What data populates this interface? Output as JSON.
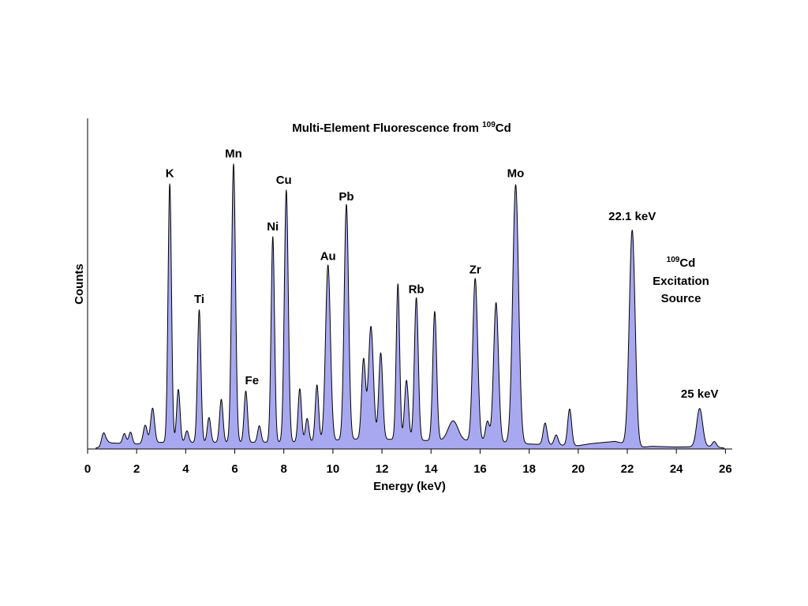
{
  "chart_data": {
    "type": "area",
    "title_main": "Multi-Element Fluorescence from ",
    "title_sup": "109",
    "title_end": "Cd",
    "xlabel": "Energy (keV)",
    "ylabel": "Counts",
    "xlim": [
      0,
      26.3
    ],
    "ylim": [
      0,
      100
    ],
    "grid": false,
    "fill_color": "#a8a8f0",
    "line_color": "#000000",
    "x_ticks": [
      "0",
      "2",
      "4",
      "6",
      "8",
      "10",
      "12",
      "14",
      "16",
      "18",
      "20",
      "22",
      "24",
      "26"
    ],
    "background": [
      {
        "x": 0.0,
        "y": 0
      },
      {
        "x": 0.5,
        "y": 0.5
      },
      {
        "x": 0.8,
        "y": 2.2
      },
      {
        "x": 1.0,
        "y": 1.8
      },
      {
        "x": 2.0,
        "y": 1.5
      },
      {
        "x": 3.0,
        "y": 2.0
      },
      {
        "x": 5.0,
        "y": 2.0
      },
      {
        "x": 7.0,
        "y": 2.0
      },
      {
        "x": 9.0,
        "y": 2.2
      },
      {
        "x": 11.0,
        "y": 3.0
      },
      {
        "x": 12.0,
        "y": 3.0
      },
      {
        "x": 14.0,
        "y": 2.5
      },
      {
        "x": 16.0,
        "y": 2.5
      },
      {
        "x": 18.0,
        "y": 1.5
      },
      {
        "x": 20.0,
        "y": 1.0
      },
      {
        "x": 20.5,
        "y": 1.6
      },
      {
        "x": 21.5,
        "y": 2.3
      },
      {
        "x": 22.5,
        "y": 0.5
      },
      {
        "x": 23.0,
        "y": 0.8
      },
      {
        "x": 24.0,
        "y": 0.6
      },
      {
        "x": 25.5,
        "y": 0.8
      },
      {
        "x": 26.0,
        "y": 0.2
      }
    ],
    "peaks": [
      {
        "x": 0.65,
        "y": 3.5,
        "w": 0.08
      },
      {
        "x": 1.5,
        "y": 3.0,
        "w": 0.07
      },
      {
        "x": 1.75,
        "y": 3.5,
        "w": 0.07
      },
      {
        "x": 2.35,
        "y": 5.5,
        "w": 0.08
      },
      {
        "x": 2.65,
        "y": 10.5,
        "w": 0.08
      },
      {
        "x": 3.35,
        "y": 78,
        "w": 0.07
      },
      {
        "x": 3.7,
        "y": 16,
        "w": 0.07
      },
      {
        "x": 4.05,
        "y": 3.5,
        "w": 0.07
      },
      {
        "x": 4.55,
        "y": 40,
        "w": 0.07
      },
      {
        "x": 4.95,
        "y": 7.5,
        "w": 0.07
      },
      {
        "x": 5.45,
        "y": 13,
        "w": 0.07
      },
      {
        "x": 5.95,
        "y": 84,
        "w": 0.08
      },
      {
        "x": 6.45,
        "y": 15.5,
        "w": 0.07
      },
      {
        "x": 7.0,
        "y": 5,
        "w": 0.07
      },
      {
        "x": 7.55,
        "y": 62,
        "w": 0.07
      },
      {
        "x": 8.1,
        "y": 76,
        "w": 0.08
      },
      {
        "x": 8.65,
        "y": 16,
        "w": 0.07
      },
      {
        "x": 8.95,
        "y": 7,
        "w": 0.07
      },
      {
        "x": 9.35,
        "y": 17,
        "w": 0.07
      },
      {
        "x": 9.8,
        "y": 53,
        "w": 0.1
      },
      {
        "x": 10.55,
        "y": 71,
        "w": 0.09
      },
      {
        "x": 11.25,
        "y": 24,
        "w": 0.08
      },
      {
        "x": 11.55,
        "y": 34,
        "w": 0.1
      },
      {
        "x": 11.95,
        "y": 26,
        "w": 0.08
      },
      {
        "x": 12.65,
        "y": 47,
        "w": 0.07
      },
      {
        "x": 13.0,
        "y": 18,
        "w": 0.08
      },
      {
        "x": 13.4,
        "y": 43,
        "w": 0.08
      },
      {
        "x": 14.15,
        "y": 39,
        "w": 0.08
      },
      {
        "x": 14.9,
        "y": 6,
        "w": 0.2
      },
      {
        "x": 15.8,
        "y": 49,
        "w": 0.1
      },
      {
        "x": 16.3,
        "y": 6,
        "w": 0.08
      },
      {
        "x": 16.65,
        "y": 42,
        "w": 0.1
      },
      {
        "x": 17.45,
        "y": 78,
        "w": 0.12
      },
      {
        "x": 18.65,
        "y": 6.5,
        "w": 0.08
      },
      {
        "x": 19.1,
        "y": 3,
        "w": 0.08
      },
      {
        "x": 19.65,
        "y": 11,
        "w": 0.08
      },
      {
        "x": 22.2,
        "y": 65,
        "w": 0.12
      },
      {
        "x": 24.95,
        "y": 11.5,
        "w": 0.12
      },
      {
        "x": 25.55,
        "y": 1.5,
        "w": 0.08
      }
    ],
    "annotations": [
      {
        "text": "K",
        "x": 3.35,
        "y": 82
      },
      {
        "text": "Ti",
        "x": 4.55,
        "y": 44
      },
      {
        "text": "Mn",
        "x": 5.95,
        "y": 88
      },
      {
        "text": "Fe",
        "x": 6.7,
        "y": 19.5
      },
      {
        "text": "Ni",
        "x": 7.55,
        "y": 66
      },
      {
        "text": "Cu",
        "x": 8.0,
        "y": 80
      },
      {
        "text": "Au",
        "x": 9.8,
        "y": 57
      },
      {
        "text": "Pb",
        "x": 10.55,
        "y": 75
      },
      {
        "text": "Rb",
        "x": 13.4,
        "y": 47
      },
      {
        "text": "Zr",
        "x": 15.8,
        "y": 53
      },
      {
        "text": "Mo",
        "x": 17.45,
        "y": 82
      },
      {
        "text": "22.1 keV",
        "x": 22.2,
        "y": 69
      },
      {
        "text": "25 keV",
        "x": 24.95,
        "y": 15.5
      }
    ],
    "source_label": {
      "sup": "109",
      "element": "Cd",
      "line2": "Excitation",
      "line3": "Source"
    }
  }
}
